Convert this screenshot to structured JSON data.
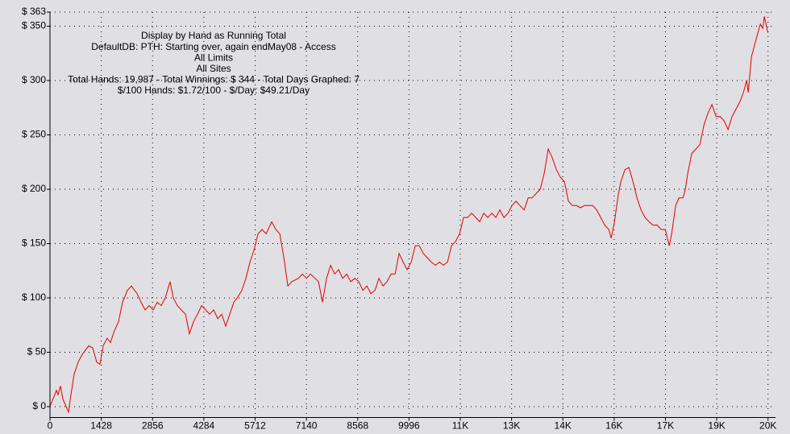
{
  "chart_data": {
    "type": "line",
    "annotations": [
      "Display by Hand as Running Total",
      "DefaultDB: PTH: Starting over, again endMay08 - Access",
      "All Limits",
      "All Sites",
      "Total Hands: 19,987 - Total Winnings: $ 344 - Total Days Graphed: 7",
      "$/100 Hands: $1.72/100 - $/Day: $49.21/Day"
    ],
    "color": "#e00000",
    "grid": true,
    "xlim": [
      0,
      20200
    ],
    "ylim": [
      -10,
      363
    ],
    "xticks": [
      0,
      1428,
      2856,
      4284,
      5712,
      7140,
      8568,
      9996,
      {
        "value": 11424,
        "label": "11K"
      },
      {
        "value": 12852,
        "label": "13K"
      },
      {
        "value": 14280,
        "label": "14K"
      },
      {
        "value": 15708,
        "label": "16K"
      },
      {
        "value": 17136,
        "label": "17K"
      },
      {
        "value": 18564,
        "label": "19K"
      },
      {
        "value": 19992,
        "label": "20K"
      }
    ],
    "yticks": [
      {
        "value": 0,
        "label": "$ 0"
      },
      {
        "value": 50,
        "label": "$ 50"
      },
      {
        "value": 100,
        "label": "$ 100"
      },
      {
        "value": 150,
        "label": "$ 150"
      },
      {
        "value": 200,
        "label": "$ 200"
      },
      {
        "value": 250,
        "label": "$ 250"
      },
      {
        "value": 300,
        "label": "$ 300"
      },
      {
        "value": 350,
        "label": "$ 350"
      },
      {
        "value": 363,
        "label": "$ 363"
      }
    ],
    "x": [
      0,
      180,
      225,
      292,
      359,
      449,
      516,
      584,
      674,
      786,
      898,
      1078,
      1190,
      1302,
      1392,
      1482,
      1594,
      1684,
      1796,
      1908,
      2021,
      2155,
      2267,
      2425,
      2537,
      2649,
      2761,
      2874,
      2986,
      3098,
      3210,
      3345,
      3435,
      3547,
      3659,
      3772,
      3884,
      3996,
      4108,
      4221,
      4333,
      4445,
      4557,
      4670,
      4782,
      4894,
      5006,
      5119,
      5231,
      5343,
      5455,
      5568,
      5680,
      5792,
      5904,
      6017,
      6174,
      6286,
      6398,
      6511,
      6623,
      6735,
      6915,
      7027,
      7139,
      7251,
      7476,
      7588,
      7700,
      7813,
      7925,
      8037,
      8149,
      8262,
      8374,
      8486,
      8598,
      8711,
      8823,
      8935,
      9047,
      9160,
      9272,
      9384,
      9496,
      9609,
      9721,
      9833,
      9945,
      10058,
      10170,
      10282,
      10394,
      10507,
      10619,
      10731,
      10843,
      10956,
      11068,
      11180,
      11292,
      11405,
      11517,
      11629,
      11741,
      11854,
      11966,
      12078,
      12190,
      12303,
      12415,
      12527,
      12639,
      12752,
      12864,
      12976,
      13088,
      13201,
      13313,
      13425,
      13537,
      13650,
      13762,
      13874,
      13986,
      14099,
      14211,
      14323,
      14435,
      14548,
      14660,
      14772,
      14884,
      14997,
      15109,
      15221,
      15333,
      15446,
      15558,
      15625,
      15715,
      15827,
      15895,
      16007,
      16119,
      16231,
      16344,
      16456,
      16568,
      16680,
      16793,
      16905,
      17017,
      17129,
      17242,
      17309,
      17421,
      17511,
      17623,
      17690,
      17758,
      17870,
      17982,
      18095,
      18207,
      18319,
      18431,
      18544,
      18656,
      18768,
      18880,
      18993,
      19105,
      19217,
      19307,
      19397,
      19442,
      19532,
      19621,
      19711,
      19778,
      19846,
      19891,
      19987
    ],
    "values": [
      0,
      15,
      11,
      19,
      7,
      0,
      -5,
      11,
      30,
      41,
      48,
      56,
      54,
      41,
      39,
      56,
      63,
      59,
      70,
      78,
      96,
      107,
      111,
      104,
      96,
      89,
      93,
      89,
      96,
      93,
      100,
      115,
      100,
      93,
      89,
      85,
      67,
      78,
      85,
      93,
      89,
      85,
      89,
      81,
      85,
      74,
      85,
      96,
      101,
      107,
      118,
      133,
      144,
      159,
      163,
      159,
      170,
      163,
      159,
      137,
      111,
      115,
      118,
      122,
      118,
      122,
      115,
      96,
      118,
      130,
      122,
      126,
      118,
      122,
      115,
      118,
      115,
      107,
      111,
      104,
      107,
      118,
      111,
      115,
      122,
      122,
      141,
      133,
      126,
      133,
      148,
      148,
      141,
      137,
      133,
      130,
      133,
      130,
      133,
      148,
      152,
      159,
      174,
      174,
      178,
      174,
      170,
      178,
      174,
      178,
      174,
      181,
      174,
      178,
      185,
      189,
      185,
      181,
      192,
      192,
      196,
      200,
      215,
      237,
      229,
      218,
      211,
      207,
      189,
      185,
      185,
      183,
      185,
      185,
      185,
      181,
      174,
      167,
      163,
      155,
      170,
      196,
      207,
      218,
      220,
      207,
      192,
      181,
      174,
      170,
      167,
      167,
      163,
      163,
      148,
      159,
      185,
      192,
      192,
      200,
      215,
      233,
      237,
      241,
      259,
      270,
      278,
      267,
      267,
      263,
      255,
      267,
      274,
      281,
      289,
      300,
      289,
      322,
      333,
      344,
      352,
      348,
      359,
      344
    ]
  }
}
